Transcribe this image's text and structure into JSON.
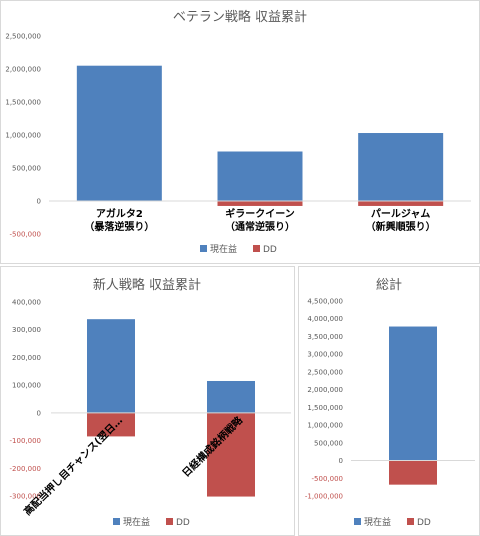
{
  "chart_data": [
    {
      "type": "bar",
      "stacked": true,
      "title": "ベテラン戦略 収益累計",
      "categories": [
        [
          "アガルタ2",
          "（暴落逆張り）"
        ],
        [
          "ギラークイーン",
          "（通常逆張り）"
        ],
        [
          "パールジャム",
          "（新興順張り）"
        ]
      ],
      "series": [
        {
          "name": "現在益",
          "values": [
            2050000,
            750000,
            1030000
          ]
        },
        {
          "name": "DD",
          "values": [
            0,
            -75000,
            -75000
          ]
        }
      ],
      "ylim": [
        -500000,
        2500000
      ],
      "yticks": [
        "2,500,000",
        "2,000,000",
        "1,500,000",
        "1,000,000",
        "500,000",
        "0",
        "-500,000"
      ],
      "legend": "bottom",
      "grid": false
    },
    {
      "type": "bar",
      "stacked": true,
      "title": "新人戦略 収益累計",
      "categories": [
        "高配当押し目チャンス(翌日…",
        "日経構成銘柄戦略"
      ],
      "series": [
        {
          "name": "現在益",
          "values": [
            338000,
            115000
          ]
        },
        {
          "name": "DD",
          "values": [
            -85000,
            -302000
          ]
        }
      ],
      "ylim": [
        -300000,
        400000
      ],
      "yticks": [
        "400,000",
        "300,000",
        "200,000",
        "100,000",
        "0",
        "-100,000",
        "-200,000",
        "-300,000"
      ],
      "legend": "bottom",
      "grid": false
    },
    {
      "type": "bar",
      "stacked": true,
      "title": "総計",
      "categories": [
        ""
      ],
      "series": [
        {
          "name": "現在益",
          "values": [
            3780000
          ]
        },
        {
          "name": "DD",
          "values": [
            -680000
          ]
        }
      ],
      "ylim": [
        -1000000,
        4500000
      ],
      "yticks": [
        "4,500,000",
        "4,000,000",
        "3,500,000",
        "3,000,000",
        "2,500,000",
        "2,000,000",
        "1,500,000",
        "1,000,000",
        "500,000",
        "0",
        "-500,000",
        "-1,000,000"
      ],
      "legend": "bottom",
      "grid": false
    }
  ],
  "colors": {
    "profit": "#4f81bd",
    "dd": "#c0504d",
    "axis": "#d9d9d9"
  }
}
